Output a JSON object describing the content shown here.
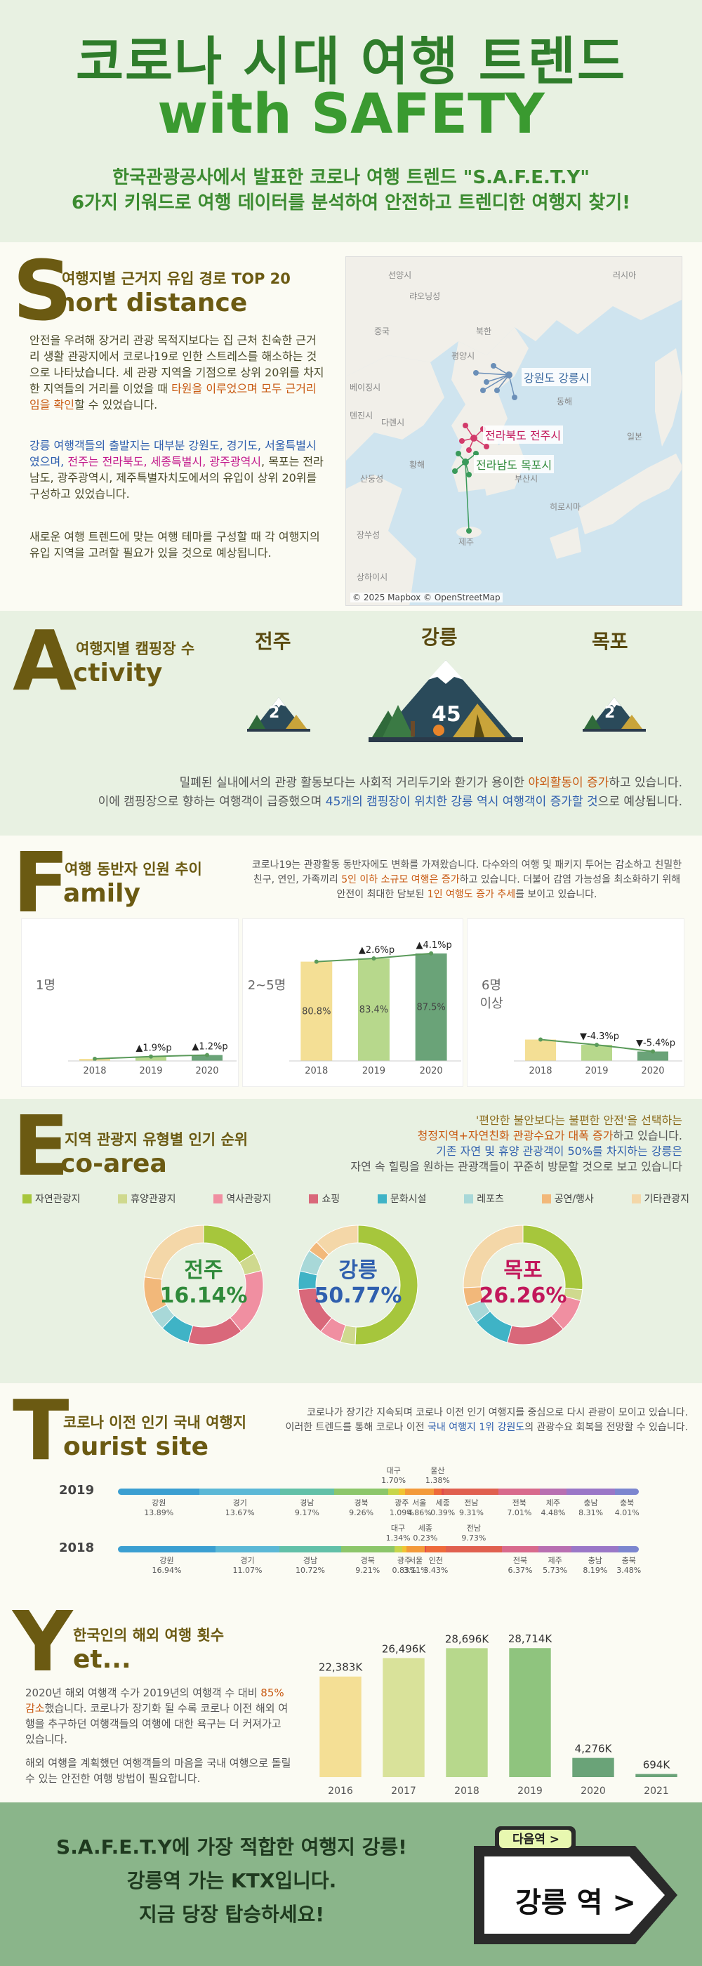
{
  "header": {
    "title_line1": "코로나 시대 여행 트렌드",
    "title_line2": "with SAFETY",
    "subtitle_line1": "한국관광공사에서 발표한 코로나 여행 트렌드 \"S.A.F.E.T.Y\"",
    "subtitle_line2": "6가지 키워드로 여행 데이터를 분석하여 안전하고 트렌디한 여행지 찾기!"
  },
  "s_section": {
    "letter": "S",
    "title": "여행지별 근거지 유입 경로 TOP 20",
    "word": "hort distance",
    "p1": "안전을 우려해 장거리 관광 목적지보다는 집 근처 친숙한 근거리 생활 관광지에서 코로나19로 인한 스트레스를 해소하는 것으로 나타났습니다. 세 관광 지역을 기점으로 상위 20위를 차지한 지역들의 거리를 이었을 때",
    "p1_hl1": "타원을 이루었으며",
    "p1_hl2": "모두 근거리임을 확인",
    "p1_end": "할 수 있었습니다.",
    "p2_a": "강릉 여행객들의 출발지는 대부분 강원도, 경기도, 서울특별시였으며,",
    "p2_b": "전주는 전라북도, 세종특별시, 광주광역시",
    "p2_c": ", 목포는 전라남도, 광주광역시, 제주특별자치도에서의 유입이 상위 20위를 구성하고 있었습니다.",
    "p3": "새로운 여행 트렌드에 맞는 여행 테마를 구성할 때 각 여행지의 유입 지역을 고려할 필요가 있을 것으로 예상됩니다.",
    "map_labels": [
      "강원도 강릉시",
      "전라북도 전주시",
      "전라남도 목포시"
    ],
    "map_credit": "© 2025 Mapbox © OpenStreetMap",
    "map_places": [
      "러시아",
      "중국",
      "선양시",
      "다롄시",
      "베이징시",
      "톈진시",
      "랴오닝성",
      "북한",
      "평양시",
      "황해",
      "산둥성",
      "장쑤성",
      "상하이시",
      "제주",
      "부산시",
      "일본",
      "히로시마",
      "동해"
    ]
  },
  "a_section": {
    "letter": "A",
    "title": "여행지별 캠핑장 수",
    "word": "ctivity",
    "cities": [
      {
        "name": "전주",
        "count": "2"
      },
      {
        "name": "강릉",
        "count": "45"
      },
      {
        "name": "목포",
        "count": "2"
      }
    ],
    "desc1_a": "밀폐된 실내에서의 관광 활동보다는 사회적 거리두기와 환기가 용이한 ",
    "desc1_hl": "야외활동이 증가",
    "desc1_b": "하고 있습니다.",
    "desc2_a": "이에 캠핑장으로 향하는 여행객이 급증했으며 ",
    "desc2_hl": "45개의 캠핑장이 위치한 강릉 역시 여행객이 증가할 것",
    "desc2_b": "으로 예상됩니다."
  },
  "f_section": {
    "letter": "F",
    "title": "여행 동반자 인원 추이",
    "word": "amily",
    "desc_a": "코로나19는 관광활동 동반자에도 변화를 가져왔습니다. 다수와의 여행 및 패키지 투어는 감소하고 친밀한 친구, 연인, 가족끼리 ",
    "desc_hl1": "5인 이하 소규모 여행은 증가",
    "desc_b": "하고 있습니다. 더불어 감염 가능성을 최소화하기 위해 안전이 최대한 담보된 ",
    "desc_hl2": "1인 여행도 증가 추세",
    "desc_c": "를 보이고 있습니다.",
    "panels": [
      {
        "label": "1명",
        "years": [
          "2018",
          "2019",
          "2020"
        ],
        "bar_labels": [
          "",
          "",
          ""
        ],
        "changes": [
          "",
          "▲1.9%p",
          "▲1.2%p"
        ],
        "values": [
          1.7,
          3.6,
          4.8
        ]
      },
      {
        "label": "2~5명",
        "years": [
          "2018",
          "2019",
          "2020"
        ],
        "bar_labels": [
          "80.8%",
          "83.4%",
          "87.5%"
        ],
        "changes": [
          "",
          "▲2.6%p",
          "▲4.1%p"
        ],
        "values": [
          80.8,
          83.4,
          87.5
        ]
      },
      {
        "label": "6명\n이상",
        "years": [
          "2018",
          "2019",
          "2020"
        ],
        "bar_labels": [
          "",
          "",
          ""
        ],
        "changes": [
          "",
          "▼-4.3%p",
          "▼-5.4%p"
        ],
        "values": [
          17.4,
          13.1,
          7.7
        ]
      }
    ],
    "colors": [
      "#f4df95",
      "#b7d88c",
      "#6aa378"
    ]
  },
  "e_section": {
    "letter": "E",
    "title": "지역 관광지 유형별 인기 순위",
    "word": "co-area",
    "desc_line1": "'편안한 불안보다는 불편한 안전'을 선택하는",
    "desc_line2_hl": "청정지역+자연친화 관광수요가 대폭 증가",
    "desc_line2_b": "하고 있습니다.",
    "desc_line3": "기존 자연 및 휴양 관광객이 50%를 차지하는 강릉은",
    "desc_line4": "자연 속 힐링을 원하는 관광객들이 꾸준히 방문할 것으로 보고 있습니다",
    "legend": [
      {
        "name": "자연관광지",
        "color": "#a6c63c"
      },
      {
        "name": "휴양관광지",
        "color": "#cfd98e"
      },
      {
        "name": "역사관광지",
        "color": "#f08fa1"
      },
      {
        "name": "쇼핑",
        "color": "#d9687a"
      },
      {
        "name": "문화시설",
        "color": "#3fb3c6"
      },
      {
        "name": "레포츠",
        "color": "#a8d8d8"
      },
      {
        "name": "공연/행사",
        "color": "#f2b87a"
      },
      {
        "name": "기타관광지",
        "color": "#f4d7a8"
      }
    ],
    "donuts": [
      {
        "city": "전주",
        "value": "16.14%",
        "color": "#2f8a3a",
        "shares": [
          16.14,
          5,
          18,
          15,
          8,
          5,
          10,
          22.86
        ]
      },
      {
        "city": "강릉",
        "value": "50.77%",
        "color": "#2f5fae",
        "shares": [
          50.77,
          4,
          6,
          13,
          5,
          6,
          3,
          12.23
        ]
      },
      {
        "city": "목포",
        "value": "26.26%",
        "color": "#c2185b",
        "shares": [
          26.26,
          3,
          9,
          16,
          10,
          5,
          5,
          25.74
        ]
      }
    ]
  },
  "t_section": {
    "letter": "T",
    "title": "코로나 이전 인기 국내 여행지",
    "word": "ourist site",
    "desc_line1": "코로나가 장기간 지속되며 코로나 이전 인기 여행지를 중심으로 다시 관광이 모이고 있습니다.",
    "desc_line2_a": "이러한 트렌드를 통해 코로나 이전 ",
    "desc_line2_hl": "국내 여행지 1위 강원도",
    "desc_line2_b": "의 관광수요 회복을 전망할 수 있습니다.",
    "rows": [
      {
        "year": "2019",
        "segments": [
          {
            "name": "강원",
            "value": 13.89,
            "color": "#3b9fd1"
          },
          {
            "name": "경기",
            "value": 13.67,
            "color": "#5bb8d6"
          },
          {
            "name": "경남",
            "value": 9.17,
            "color": "#62c0a8"
          },
          {
            "name": "경북",
            "value": 9.26,
            "color": "#8cc66a"
          },
          {
            "name": "대구",
            "value": 1.7,
            "color": "#c7d54a"
          },
          {
            "name": "광주",
            "value": 1.09,
            "color": "#f0c433"
          },
          {
            "name": "서울",
            "value": 4.86,
            "color": "#f39a3a"
          },
          {
            "name": "울산",
            "value": 1.38,
            "color": "#ee6a3a"
          },
          {
            "name": "세종",
            "value": 0.39,
            "color": "#e14b4b"
          },
          {
            "name": "전남",
            "value": 9.31,
            "color": "#e0604f"
          },
          {
            "name": "전북",
            "value": 7.01,
            "color": "#d86a8c"
          },
          {
            "name": "제주",
            "value": 4.48,
            "color": "#b86fb1"
          },
          {
            "name": "충남",
            "value": 8.31,
            "color": "#9a77c7"
          },
          {
            "name": "충북",
            "value": 4.01,
            "color": "#7c86cf"
          }
        ],
        "labels_below": [
          "강원\n13.89%",
          "경기\n13.67%",
          "경남\n9.17%",
          "경북\n9.26%",
          "광주\n1.09%",
          "서울\n4.86%",
          "세종\n0.39%",
          "전남\n9.31%",
          "전북\n7.01%",
          "제주\n4.48%",
          "충남\n8.31%",
          "충북\n4.01%"
        ],
        "labels_above": [
          "대구\n1.70%",
          "울산\n1.38%"
        ]
      },
      {
        "year": "2018",
        "segments": [
          {
            "name": "강원",
            "value": 16.94,
            "color": "#3b9fd1"
          },
          {
            "name": "경기",
            "value": 11.07,
            "color": "#5bb8d6"
          },
          {
            "name": "경남",
            "value": 10.72,
            "color": "#62c0a8"
          },
          {
            "name": "경북",
            "value": 9.21,
            "color": "#8cc66a"
          },
          {
            "name": "대구",
            "value": 1.34,
            "color": "#c7d54a"
          },
          {
            "name": "광주",
            "value": 0.83,
            "color": "#f0c433"
          },
          {
            "name": "서울",
            "value": 3.11,
            "color": "#f39a3a"
          },
          {
            "name": "세종",
            "value": 0.23,
            "color": "#e14b4b"
          },
          {
            "name": "인천",
            "value": 3.43,
            "color": "#ee6a3a"
          },
          {
            "name": "전남",
            "value": 9.73,
            "color": "#e0604f"
          },
          {
            "name": "전북",
            "value": 6.37,
            "color": "#d86a8c"
          },
          {
            "name": "제주",
            "value": 5.73,
            "color": "#b86fb1"
          },
          {
            "name": "충남",
            "value": 8.19,
            "color": "#9a77c7"
          },
          {
            "name": "충북",
            "value": 3.48,
            "color": "#7c86cf"
          }
        ],
        "labels_below": [
          "강원\n16.94%",
          "경기\n11.07%",
          "경남\n10.72%",
          "경북\n9.21%",
          "광주\n0.83%",
          "서울\n3.11%",
          "인천\n3.43%",
          "전북\n6.37%",
          "제주\n5.73%",
          "충남\n8.19%",
          "충북\n3.48%"
        ],
        "labels_above": [
          "대구\n1.34%",
          "세종\n0.23%",
          "전남\n9.73%"
        ]
      }
    ]
  },
  "y_section": {
    "letter": "Y",
    "title": "한국인의 해외 여행 횟수",
    "word": "et...",
    "p1_a": "2020년 해외 여행객 수가 2019년의 여행객 수 대비 ",
    "p1_hl": "85% 감소",
    "p1_b": "했습니다. 코로나가 장기화 될 수록 코로나 이전 해외 여행을 추구하던 여행객들의 여행에 대한 욕구는 더 커져가고 있습니다.",
    "p2": "해외 여행을 계획했던 여행객들의 마음을 국내 여행으로 돌릴 수 있는 안전한 여행 방법이 필요합니다."
  },
  "chart_data": {
    "type": "bar",
    "categories": [
      "2016",
      "2017",
      "2018",
      "2019",
      "2020",
      "2021"
    ],
    "values": [
      22383,
      26496,
      28696,
      28714,
      4276,
      694
    ],
    "data_labels": [
      "22,383K",
      "26,496K",
      "28,696K",
      "28,714K",
      "4,276K",
      "694K"
    ],
    "title": "한국인의 해외 여행 횟수",
    "ylim": [
      0,
      30000
    ],
    "colors": [
      "#f4df95",
      "#d9e29a",
      "#b7d88c",
      "#8fc47e",
      "#6aa378",
      "#6aa378"
    ],
    "grid": false
  },
  "bottom": {
    "line1": "S.A.F.E.T.Y에 가장 적합한 여행지 강릉!",
    "line2": "강릉역 가는 KTX입니다.",
    "line3": "지금 당장 탑승하세요!",
    "next_label": "다음역 >",
    "station_label": "강릉 역 >"
  }
}
